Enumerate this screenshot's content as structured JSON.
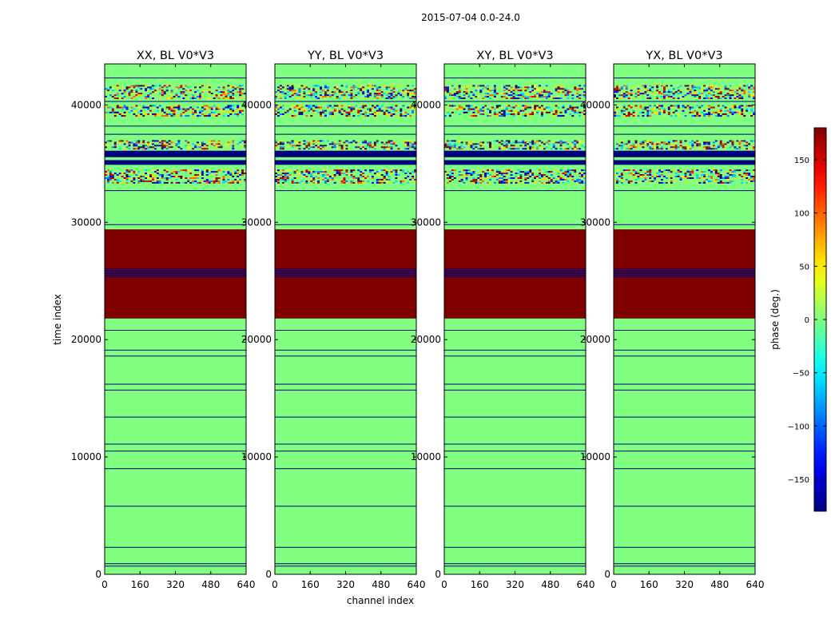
{
  "chart_data": {
    "type": "heatmap",
    "suptitle": "2015-07-04 0.0-24.0",
    "xlabel": "channel index",
    "ylabel": "time index",
    "xlim": [
      0,
      640
    ],
    "ylim": [
      0,
      43500
    ],
    "xticks": [
      0,
      160,
      320,
      480,
      640
    ],
    "xtick_labels": [
      "0",
      "160",
      "320",
      "480",
      "640"
    ],
    "yticks": [
      0,
      10000,
      20000,
      30000,
      40000
    ],
    "ytick_labels": [
      "0",
      "10000",
      "20000",
      "30000",
      "40000"
    ],
    "panels": [
      {
        "title": "XX, BL V0*V3"
      },
      {
        "title": "YY, BL V0*V3"
      },
      {
        "title": "XY, BL V0*V3"
      },
      {
        "title": "YX, BL V0*V3"
      }
    ],
    "background_phase_deg": 0,
    "saturated_block": {
      "from": 21800,
      "to": 29400,
      "phase_deg": 180
    },
    "blue_bands": [
      {
        "from": 25300,
        "to": 26100,
        "phase_deg": -180
      },
      {
        "from": 34900,
        "to": 35300,
        "phase_deg": -180
      },
      {
        "from": 35550,
        "to": 36100,
        "phase_deg": -180
      }
    ],
    "noisy_bands": [
      {
        "from": 33300,
        "to": 34500
      },
      {
        "from": 36200,
        "to": 37000
      },
      {
        "from": 39000,
        "to": 40000
      },
      {
        "from": 40500,
        "to": 41700
      }
    ],
    "flag_lines": [
      700,
      900,
      2300,
      5800,
      9000,
      10500,
      11100,
      13400,
      15700,
      16200,
      18600,
      19100,
      20800,
      29800,
      32700,
      37500,
      38200,
      40300,
      42300
    ],
    "colorbar": {
      "label": "phase (deg.)",
      "range": [
        -180,
        180
      ],
      "ticks": [
        -150,
        -100,
        -50,
        0,
        50,
        100,
        150
      ],
      "tick_labels": [
        "−150",
        "−100",
        "−50",
        "0",
        "50",
        "100",
        "150"
      ],
      "colormap": "jet"
    }
  }
}
